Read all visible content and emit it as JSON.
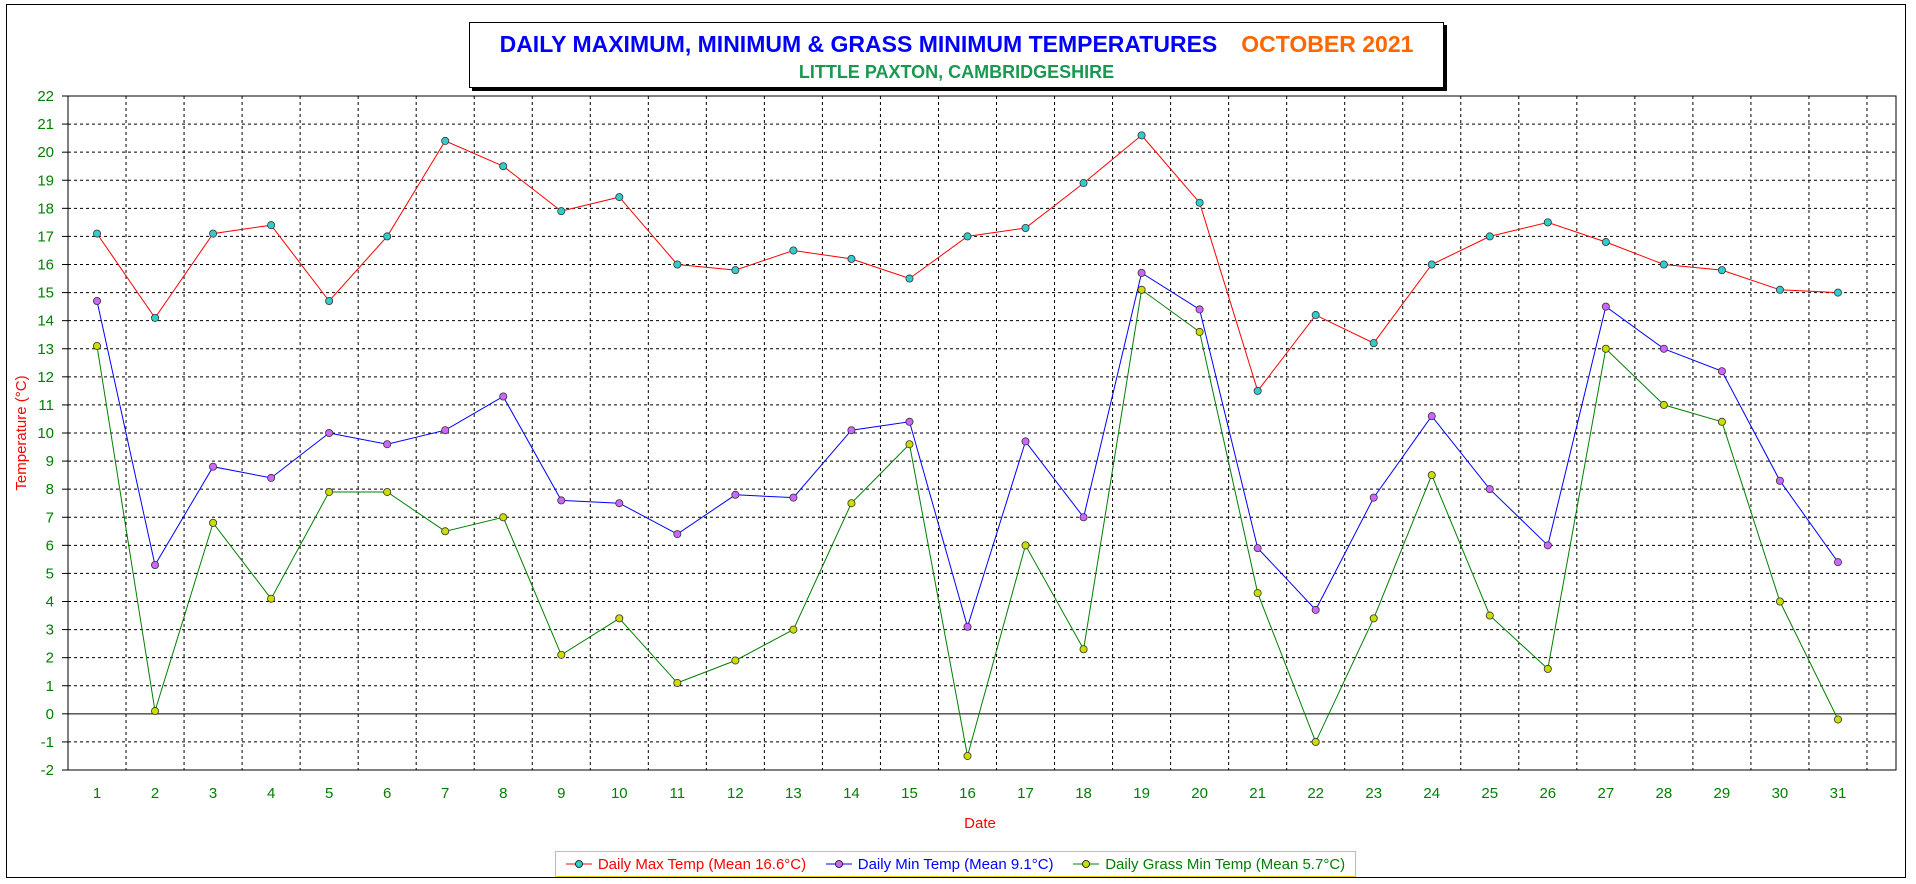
{
  "chart_data": {
    "type": "line",
    "title": "DAILY MAXIMUM, MINIMUM & GRASS MINIMUM TEMPERATURES",
    "title_period": "OCTOBER 2021",
    "subtitle": "LITTLE PAXTON, CAMBRIDGESHIRE",
    "xlabel": "Date",
    "ylabel": "Temperature (°C)",
    "ylim": [
      -2,
      22
    ],
    "x": [
      1,
      2,
      3,
      4,
      5,
      6,
      7,
      8,
      9,
      10,
      11,
      12,
      13,
      14,
      15,
      16,
      17,
      18,
      19,
      20,
      21,
      22,
      23,
      24,
      25,
      26,
      27,
      28,
      29,
      30,
      31
    ],
    "grid": true,
    "legend_position": "bottom",
    "series": [
      {
        "name": "Daily Max Temp (Mean 16.6°C)",
        "color": "#ff0000",
        "marker": "#33cccc",
        "values": [
          17.1,
          14.1,
          17.1,
          17.4,
          14.7,
          17.0,
          20.4,
          19.5,
          17.9,
          18.4,
          16.0,
          15.8,
          16.5,
          16.2,
          15.5,
          17.0,
          17.3,
          18.9,
          20.6,
          18.2,
          11.5,
          14.2,
          13.2,
          16.0,
          17.0,
          17.5,
          16.8,
          16.0,
          15.8,
          15.1,
          15.0
        ]
      },
      {
        "name": "Daily Min Temp (Mean 9.1°C)",
        "color": "#0000ff",
        "marker": "#cc66ff",
        "values": [
          14.7,
          5.3,
          8.8,
          8.4,
          10.0,
          9.6,
          10.1,
          11.3,
          7.6,
          7.5,
          6.4,
          7.8,
          7.7,
          10.1,
          10.4,
          3.1,
          9.7,
          7.0,
          15.7,
          14.4,
          5.9,
          3.7,
          7.7,
          10.6,
          8.0,
          6.0,
          14.5,
          13.0,
          12.2,
          8.3,
          5.4
        ]
      },
      {
        "name": "Daily Grass Min Temp (Mean 5.7°C)",
        "color": "#008000",
        "marker": "#ccdd00",
        "values": [
          13.1,
          0.1,
          6.8,
          4.1,
          7.9,
          7.9,
          6.5,
          7.0,
          2.1,
          3.4,
          1.1,
          1.9,
          3.0,
          7.5,
          9.6,
          -1.5,
          6.0,
          2.3,
          15.1,
          13.6,
          4.3,
          -1.0,
          3.4,
          8.5,
          3.5,
          1.6,
          13.0,
          11.0,
          10.4,
          4.0,
          -0.2
        ]
      }
    ]
  }
}
